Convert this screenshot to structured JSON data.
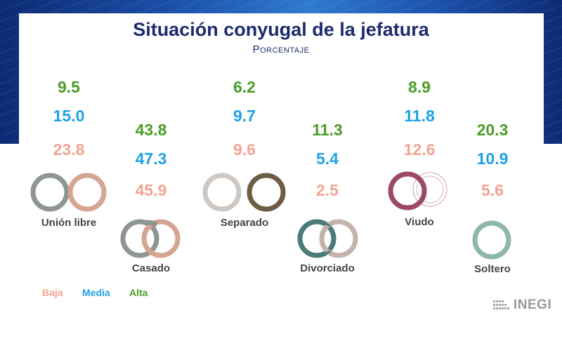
{
  "page": {
    "title": "Situación conyugal de la jefatura",
    "subtitle": "Porcentaje",
    "logo_text": "INEGI"
  },
  "colors": {
    "alta": "#4a9e28",
    "media": "#1ea1e6",
    "baja": "#f2a493",
    "title": "#1c2b6b"
  },
  "legend": [
    {
      "label": "Baja",
      "color": "#f2a493"
    },
    {
      "label": "Media",
      "color": "#1ea1e6"
    },
    {
      "label": "Alta",
      "color": "#4a9e28"
    }
  ],
  "chart_data": {
    "type": "table",
    "title": "Situación conyugal de la jefatura",
    "subtitle": "Porcentaje",
    "categories": [
      "Unión libre",
      "Casado",
      "Separado",
      "Divorciado",
      "Viudo",
      "Soltero"
    ],
    "series": [
      {
        "name": "Alta",
        "values": [
          9.5,
          43.8,
          6.2,
          11.3,
          8.9,
          20.3
        ]
      },
      {
        "name": "Media",
        "values": [
          15.0,
          47.3,
          9.7,
          5.4,
          11.8,
          10.9
        ]
      },
      {
        "name": "Baja",
        "values": [
          23.8,
          45.9,
          9.6,
          2.5,
          12.6,
          5.6
        ]
      }
    ],
    "display": {
      "Unión libre": {
        "alta": "9.5",
        "media": "15.0",
        "baja": "23.8"
      },
      "Casado": {
        "alta": "43.8",
        "media": "47.3",
        "baja": "45.9"
      },
      "Separado": {
        "alta": "6.2",
        "media": "9.7",
        "baja": "9.6"
      },
      "Divorciado": {
        "alta": "11.3",
        "media": "5.4",
        "baja": "2.5"
      },
      "Viudo": {
        "alta": "8.9",
        "media": "11.8",
        "baja": "12.6"
      },
      "Soltero": {
        "alta": "20.3",
        "media": "10.9",
        "baja": "5.6"
      }
    }
  },
  "groups": [
    {
      "key": "union",
      "label": "Unión libre",
      "alta": "9.5",
      "media": "15.0",
      "baja": "23.8",
      "icon": "two-rings-icon"
    },
    {
      "key": "casado",
      "label": "Casado",
      "alta": "43.8",
      "media": "47.3",
      "baja": "45.9",
      "icon": "two-rings-icon"
    },
    {
      "key": "separado",
      "label": "Separado",
      "alta": "6.2",
      "media": "9.7",
      "baja": "9.6",
      "icon": "separated-rings-icon"
    },
    {
      "key": "divorciado",
      "label": "Divorciado",
      "alta": "11.3",
      "media": "5.4",
      "baja": "2.5",
      "icon": "divorced-rings-icon"
    },
    {
      "key": "viudo",
      "label": "Viudo",
      "alta": "8.9",
      "media": "11.8",
      "baja": "12.6",
      "icon": "widowed-rings-icon"
    },
    {
      "key": "soltero",
      "label": "Soltero",
      "alta": "20.3",
      "media": "10.9",
      "baja": "5.6",
      "icon": "single-ring-icon"
    }
  ]
}
